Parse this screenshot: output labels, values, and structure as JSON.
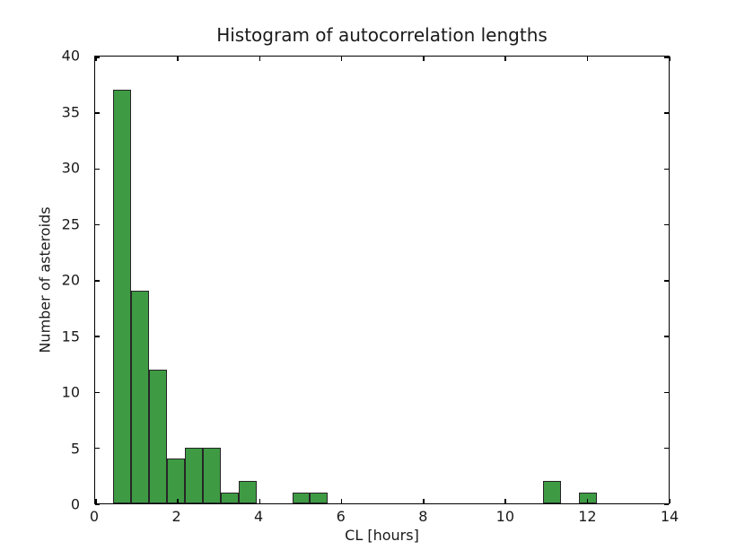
{
  "figure": {
    "background_color": "#ffffff",
    "text_color": "#1a1a1a"
  },
  "chart_data": {
    "type": "bar",
    "subtype": "histogram",
    "title": "Histogram of autocorrelation lengths",
    "xlabel": "CL [hours]",
    "ylabel": "Number of asteroids",
    "xlim": [
      0,
      14
    ],
    "ylim": [
      0,
      40
    ],
    "xticks": [
      0,
      2,
      4,
      6,
      8,
      10,
      12,
      14
    ],
    "yticks": [
      0,
      5,
      10,
      15,
      20,
      25,
      30,
      35,
      40
    ],
    "bin_start": 0.44,
    "bin_width": 0.437,
    "counts": [
      37,
      19,
      12,
      4,
      5,
      5,
      1,
      2,
      0,
      0,
      1,
      1,
      0,
      0,
      0,
      0,
      0,
      0,
      0,
      0,
      0,
      0,
      0,
      0,
      2,
      0,
      1
    ],
    "bar_color": "#3e9b44",
    "bar_edge_color": "#262626",
    "grid": false,
    "legend": null,
    "tick_direction": "in"
  }
}
